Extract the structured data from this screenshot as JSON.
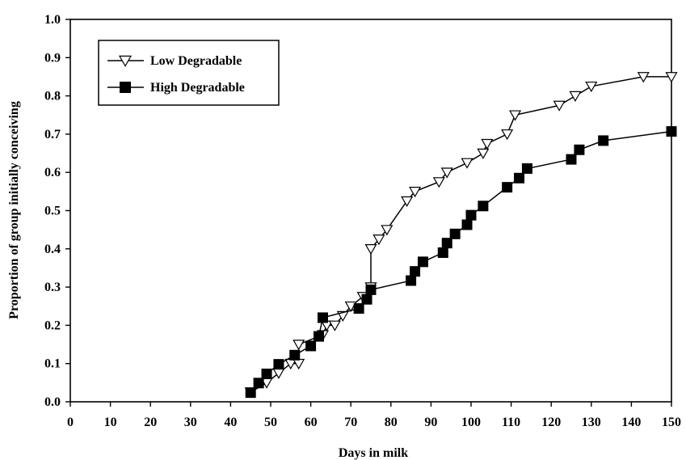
{
  "chart_data": {
    "type": "line",
    "xlabel": "Days in milk",
    "ylabel": "Proportion of group initially conceiving",
    "xlim": [
      0,
      150
    ],
    "ylim": [
      0.0,
      1.0
    ],
    "xticks": [
      "0",
      "10",
      "20",
      "30",
      "40",
      "50",
      "60",
      "70",
      "80",
      "90",
      "100",
      "110",
      "120",
      "130",
      "140",
      "150"
    ],
    "yticks": [
      "0.0",
      "0.1",
      "0.2",
      "0.3",
      "0.4",
      "0.5",
      "0.6",
      "0.7",
      "0.8",
      "0.9",
      "1.0"
    ],
    "grid": false,
    "legend_position": "top-left",
    "series": [
      {
        "name": "Low Degradable",
        "marker": "open-triangle-down",
        "color": "#000000",
        "points": [
          [
            45,
            0.025
          ],
          [
            49,
            0.05
          ],
          [
            52,
            0.075
          ],
          [
            55,
            0.1
          ],
          [
            57,
            0.1
          ],
          [
            57,
            0.15
          ],
          [
            63,
            0.175
          ],
          [
            64,
            0.2
          ],
          [
            66,
            0.2
          ],
          [
            68,
            0.225
          ],
          [
            70,
            0.25
          ],
          [
            73,
            0.275
          ],
          [
            75,
            0.3
          ],
          [
            75,
            0.4
          ],
          [
            77,
            0.425
          ],
          [
            79,
            0.45
          ],
          [
            84,
            0.525
          ],
          [
            86,
            0.55
          ],
          [
            92,
            0.575
          ],
          [
            94,
            0.6
          ],
          [
            99,
            0.625
          ],
          [
            103,
            0.65
          ],
          [
            104,
            0.675
          ],
          [
            109,
            0.7
          ],
          [
            111,
            0.75
          ],
          [
            122,
            0.775
          ],
          [
            126,
            0.8
          ],
          [
            130,
            0.825
          ],
          [
            143,
            0.85
          ],
          [
            150,
            0.85
          ]
        ]
      },
      {
        "name": "High Degradable",
        "marker": "filled-square",
        "color": "#000000",
        "points": [
          [
            45,
            0.024
          ],
          [
            47,
            0.049
          ],
          [
            49,
            0.073
          ],
          [
            52,
            0.098
          ],
          [
            56,
            0.122
          ],
          [
            63,
            0.22
          ],
          [
            60,
            0.146
          ],
          [
            62,
            0.171
          ],
          [
            72,
            0.244
          ],
          [
            74,
            0.268
          ],
          [
            75,
            0.293
          ],
          [
            85,
            0.317
          ],
          [
            86,
            0.341
          ],
          [
            88,
            0.366
          ],
          [
            93,
            0.39
          ],
          [
            94,
            0.415
          ],
          [
            96,
            0.439
          ],
          [
            99,
            0.463
          ],
          [
            100,
            0.488
          ],
          [
            103,
            0.512
          ],
          [
            109,
            0.561
          ],
          [
            112,
            0.585
          ],
          [
            114,
            0.61
          ],
          [
            125,
            0.634
          ],
          [
            127,
            0.659
          ],
          [
            133,
            0.683
          ],
          [
            150,
            0.707
          ]
        ]
      }
    ]
  }
}
